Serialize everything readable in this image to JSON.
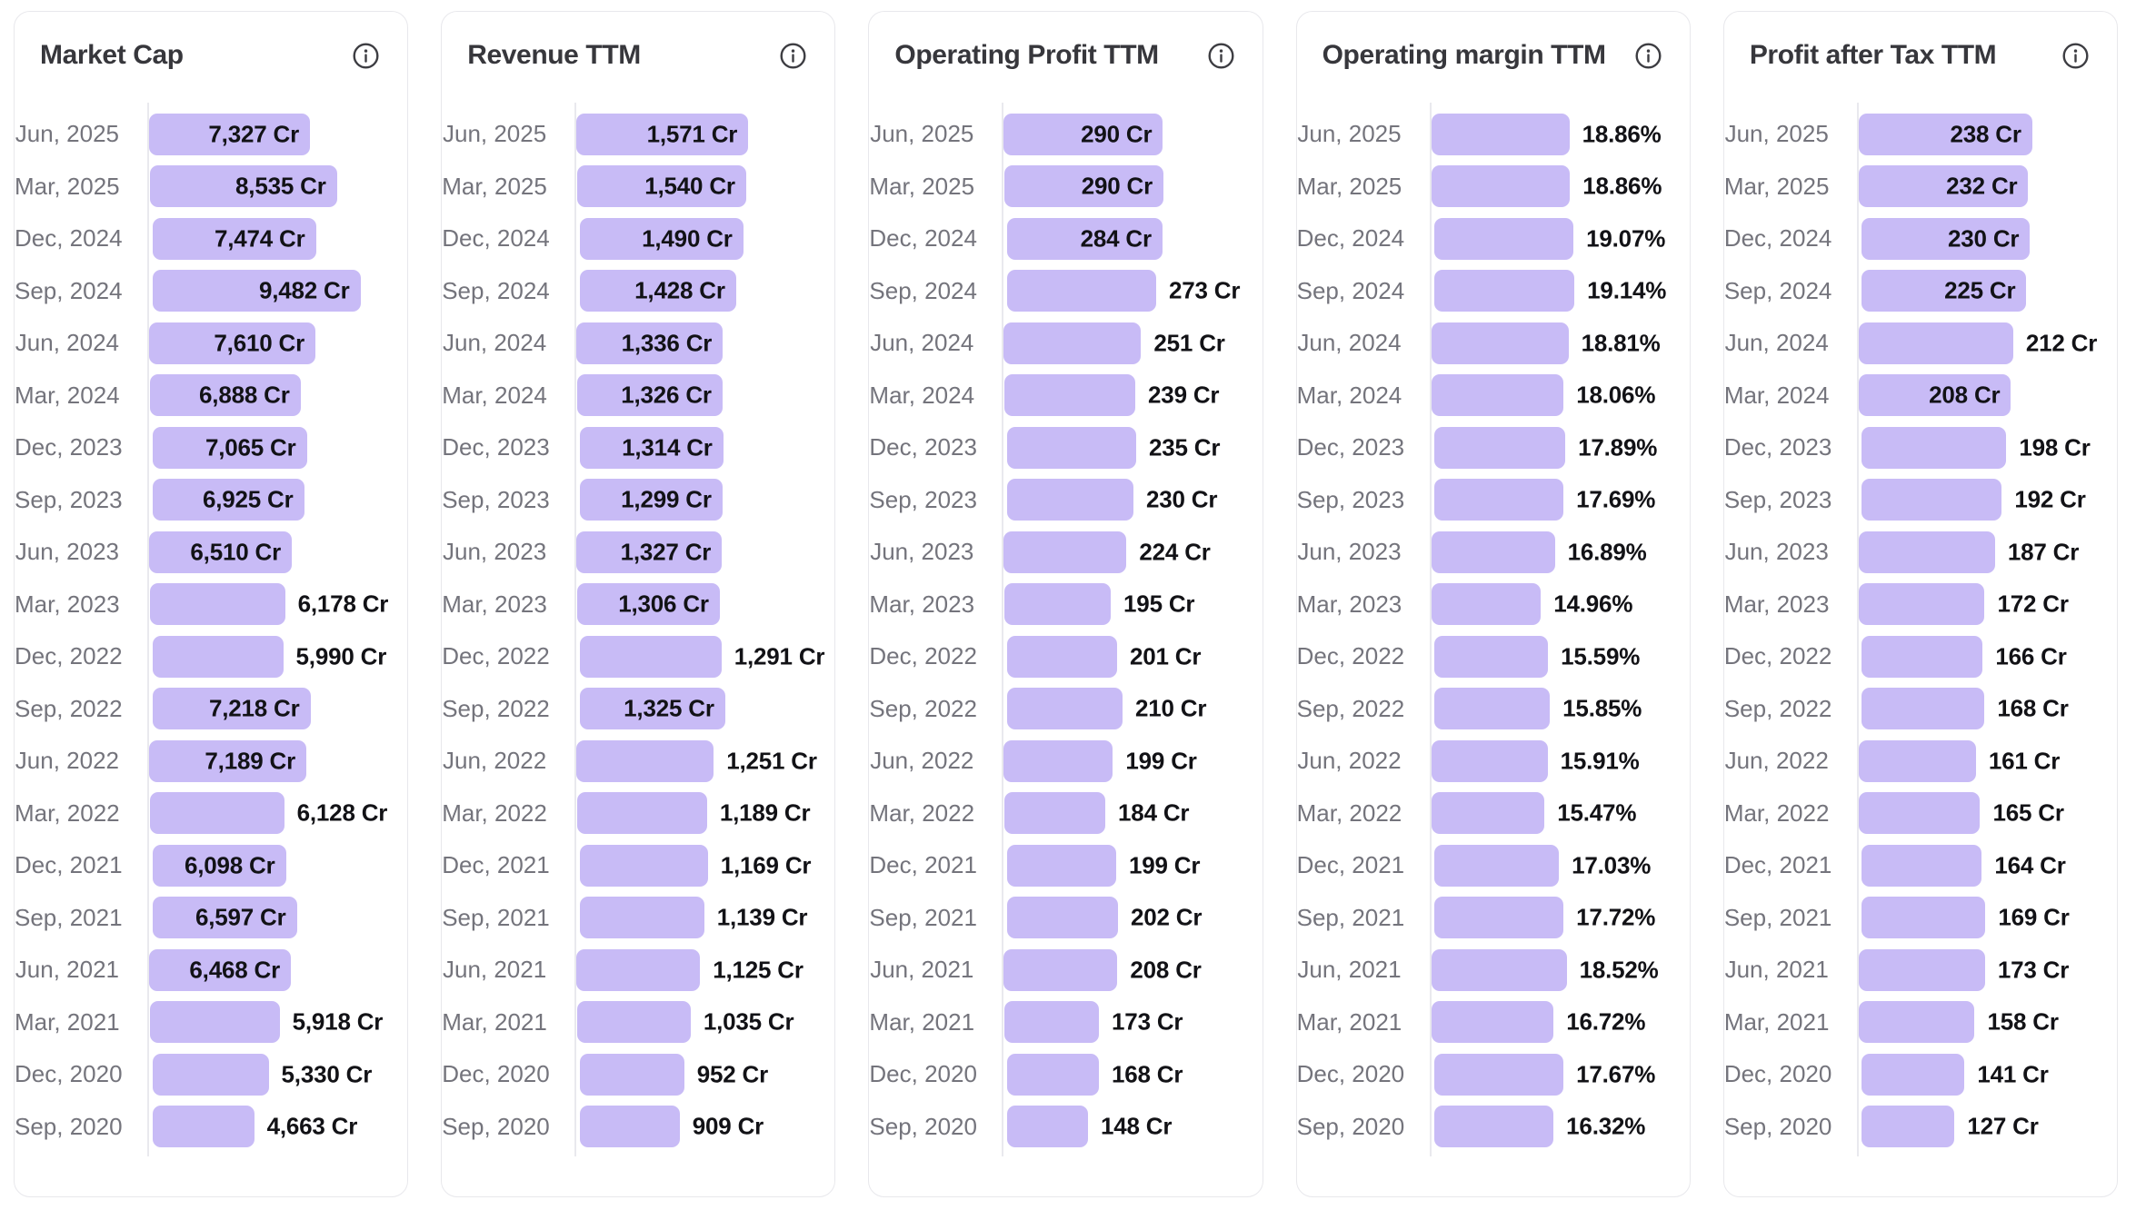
{
  "page": {
    "background": "#ffffff",
    "panel_border_color": "#e8e8ec",
    "bar_color": "#c8bbf6",
    "title_color": "#37373c",
    "period_label_color": "#74747c",
    "value_label_color": "#121216",
    "axis_line_color": "#e9e9ee",
    "info_icon": "info-icon"
  },
  "chart_data": [
    {
      "type": "bar",
      "title": "Market Cap",
      "orientation": "horizontal",
      "unit": "Cr",
      "axis_max": 10000,
      "legend_position": "none",
      "grid": false,
      "categories": [
        "Jun, 2025",
        "Mar, 2025",
        "Dec, 2024",
        "Sep, 2024",
        "Jun, 2024",
        "Mar, 2024",
        "Dec, 2023",
        "Sep, 2023",
        "Jun, 2023",
        "Mar, 2023",
        "Dec, 2022",
        "Sep, 2022",
        "Jun, 2022",
        "Mar, 2022",
        "Dec, 2021",
        "Sep, 2021",
        "Jun, 2021",
        "Mar, 2021",
        "Dec, 2020",
        "Sep, 2020"
      ],
      "values": [
        7327,
        8535,
        7474,
        9482,
        7610,
        6888,
        7065,
        6925,
        6510,
        6178,
        5990,
        7218,
        7189,
        6128,
        6098,
        6597,
        6468,
        5918,
        5330,
        4663
      ],
      "labels": [
        "7,327 Cr",
        "8,535 Cr",
        "7,474 Cr",
        "9,482 Cr",
        "7,610 Cr",
        "6,888 Cr",
        "7,065 Cr",
        "6,925 Cr",
        "6,510 Cr",
        "6,178 Cr",
        "5,990 Cr",
        "7,218 Cr",
        "7,189 Cr",
        "6,128 Cr",
        "6,098 Cr",
        "6,597 Cr",
        "6,468 Cr",
        "5,918 Cr",
        "5,330 Cr",
        "4,663 Cr"
      ],
      "label_inside": [
        true,
        true,
        true,
        true,
        true,
        true,
        true,
        true,
        true,
        false,
        false,
        true,
        true,
        false,
        true,
        true,
        true,
        false,
        false,
        false
      ]
    },
    {
      "type": "bar",
      "title": "Revenue TTM",
      "orientation": "horizontal",
      "unit": "Cr",
      "axis_max": 2000,
      "legend_position": "none",
      "grid": false,
      "categories": [
        "Jun, 2025",
        "Mar, 2025",
        "Dec, 2024",
        "Sep, 2024",
        "Jun, 2024",
        "Mar, 2024",
        "Dec, 2023",
        "Sep, 2023",
        "Jun, 2023",
        "Mar, 2023",
        "Dec, 2022",
        "Sep, 2022",
        "Jun, 2022",
        "Mar, 2022",
        "Dec, 2021",
        "Sep, 2021",
        "Jun, 2021",
        "Mar, 2021",
        "Dec, 2020",
        "Sep, 2020"
      ],
      "values": [
        1571,
        1540,
        1490,
        1428,
        1336,
        1326,
        1314,
        1299,
        1327,
        1306,
        1291,
        1325,
        1251,
        1189,
        1169,
        1139,
        1125,
        1035,
        952,
        909
      ],
      "labels": [
        "1,571 Cr",
        "1,540 Cr",
        "1,490 Cr",
        "1,428 Cr",
        "1,336 Cr",
        "1,326 Cr",
        "1,314 Cr",
        "1,299 Cr",
        "1,327 Cr",
        "1,306 Cr",
        "1,291 Cr",
        "1,325 Cr",
        "1,251 Cr",
        "1,189 Cr",
        "1,169 Cr",
        "1,139 Cr",
        "1,125 Cr",
        "1,035 Cr",
        "952 Cr",
        "909 Cr"
      ],
      "label_inside": [
        true,
        true,
        true,
        true,
        true,
        true,
        true,
        true,
        true,
        true,
        false,
        true,
        false,
        false,
        false,
        false,
        false,
        false,
        false,
        false
      ]
    },
    {
      "type": "bar",
      "title": "Operating Profit TTM",
      "orientation": "horizontal",
      "unit": "Cr",
      "axis_max": 400,
      "legend_position": "none",
      "grid": false,
      "categories": [
        "Jun, 2025",
        "Mar, 2025",
        "Dec, 2024",
        "Sep, 2024",
        "Jun, 2024",
        "Mar, 2024",
        "Dec, 2023",
        "Sep, 2023",
        "Jun, 2023",
        "Mar, 2023",
        "Dec, 2022",
        "Sep, 2022",
        "Jun, 2022",
        "Mar, 2022",
        "Dec, 2021",
        "Sep, 2021",
        "Jun, 2021",
        "Mar, 2021",
        "Dec, 2020",
        "Sep, 2020"
      ],
      "values": [
        290,
        290,
        284,
        273,
        251,
        239,
        235,
        230,
        224,
        195,
        201,
        210,
        199,
        184,
        199,
        202,
        208,
        173,
        168,
        148
      ],
      "labels": [
        "290 Cr",
        "290 Cr",
        "284 Cr",
        "273 Cr",
        "251 Cr",
        "239 Cr",
        "235 Cr",
        "230 Cr",
        "224 Cr",
        "195 Cr",
        "201 Cr",
        "210 Cr",
        "199 Cr",
        "184 Cr",
        "199 Cr",
        "202 Cr",
        "208 Cr",
        "173 Cr",
        "168 Cr",
        "148 Cr"
      ],
      "label_inside": [
        true,
        true,
        true,
        false,
        false,
        false,
        false,
        false,
        false,
        false,
        false,
        false,
        false,
        false,
        false,
        false,
        false,
        false,
        false,
        false
      ]
    },
    {
      "type": "bar",
      "title": "Operating margin TTM",
      "orientation": "horizontal",
      "unit": "%",
      "axis_max": 30,
      "legend_position": "none",
      "grid": false,
      "categories": [
        "Jun, 2025",
        "Mar, 2025",
        "Dec, 2024",
        "Sep, 2024",
        "Jun, 2024",
        "Mar, 2024",
        "Dec, 2023",
        "Sep, 2023",
        "Jun, 2023",
        "Mar, 2023",
        "Dec, 2022",
        "Sep, 2022",
        "Jun, 2022",
        "Mar, 2022",
        "Dec, 2021",
        "Sep, 2021",
        "Jun, 2021",
        "Mar, 2021",
        "Dec, 2020",
        "Sep, 2020"
      ],
      "values": [
        18.86,
        18.86,
        19.07,
        19.14,
        18.81,
        18.06,
        17.89,
        17.69,
        16.89,
        14.96,
        15.59,
        15.85,
        15.91,
        15.47,
        17.03,
        17.72,
        18.52,
        16.72,
        17.67,
        16.32
      ],
      "labels": [
        "18.86%",
        "18.86%",
        "19.07%",
        "19.14%",
        "18.81%",
        "18.06%",
        "17.89%",
        "17.69%",
        "16.89%",
        "14.96%",
        "15.59%",
        "15.85%",
        "15.91%",
        "15.47%",
        "17.03%",
        "17.72%",
        "18.52%",
        "16.72%",
        "17.67%",
        "16.32%"
      ],
      "label_inside": [
        false,
        false,
        false,
        false,
        false,
        false,
        false,
        false,
        false,
        false,
        false,
        false,
        false,
        false,
        false,
        false,
        false,
        false,
        false,
        false
      ]
    },
    {
      "type": "bar",
      "title": "Profit after Tax TTM",
      "orientation": "horizontal",
      "unit": "Cr",
      "axis_max": 300,
      "legend_position": "none",
      "grid": false,
      "categories": [
        "Jun, 2025",
        "Mar, 2025",
        "Dec, 2024",
        "Sep, 2024",
        "Jun, 2024",
        "Mar, 2024",
        "Dec, 2023",
        "Sep, 2023",
        "Jun, 2023",
        "Mar, 2023",
        "Dec, 2022",
        "Sep, 2022",
        "Jun, 2022",
        "Mar, 2022",
        "Dec, 2021",
        "Sep, 2021",
        "Jun, 2021",
        "Mar, 2021",
        "Dec, 2020",
        "Sep, 2020"
      ],
      "values": [
        238,
        232,
        230,
        225,
        212,
        208,
        198,
        192,
        187,
        172,
        166,
        168,
        161,
        165,
        164,
        169,
        173,
        158,
        141,
        127
      ],
      "labels": [
        "238 Cr",
        "232 Cr",
        "230 Cr",
        "225 Cr",
        "212 Cr",
        "208 Cr",
        "198 Cr",
        "192 Cr",
        "187 Cr",
        "172 Cr",
        "166 Cr",
        "168 Cr",
        "161 Cr",
        "165 Cr",
        "164 Cr",
        "169 Cr",
        "173 Cr",
        "158 Cr",
        "141 Cr",
        "127 Cr"
      ],
      "label_inside": [
        true,
        true,
        true,
        true,
        false,
        true,
        false,
        false,
        false,
        false,
        false,
        false,
        false,
        false,
        false,
        false,
        false,
        false,
        false,
        false
      ]
    }
  ]
}
